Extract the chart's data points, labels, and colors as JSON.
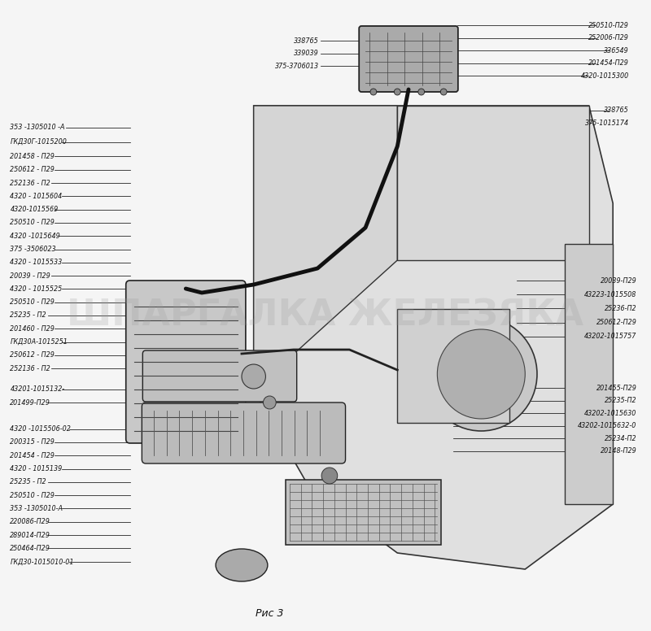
{
  "title": "Рис 3",
  "background_color": "#f5f5f5",
  "fig_width": 8.0,
  "fig_height": 7.76,
  "watermark_text": "ШПАРГАЛКА ЖЕЛЕЗЯКА",
  "watermark_alpha": 0.22,
  "watermark_fontsize": 32,
  "watermark_color": "#999999",
  "label_fontsize": 5.8,
  "label_color": "#111111",
  "left_labels": [
    [
      "353 -1305010 -А",
      0.798
    ],
    [
      "ГКД30Г-1015200",
      0.775
    ],
    [
      "201458 - П29",
      0.752
    ],
    [
      "250612 - П29",
      0.731
    ],
    [
      "252136 - П2",
      0.71
    ],
    [
      "4320 - 1015604",
      0.689
    ],
    [
      "4320-1015569",
      0.668
    ],
    [
      "250510 - П29",
      0.647
    ],
    [
      "4320 -1015649",
      0.626
    ],
    [
      "375 -3506023",
      0.605
    ],
    [
      "4320 - 1015533",
      0.584
    ],
    [
      "20039 - П29",
      0.563
    ],
    [
      "4320 - 1015525",
      0.542
    ],
    [
      "250510 - П29",
      0.521
    ],
    [
      "25235 - П2",
      0.5
    ],
    [
      "201460 - П29",
      0.479
    ],
    [
      "ГКД30А-1015251",
      0.458
    ],
    [
      "250612 - П29",
      0.437
    ],
    [
      "252136 - П2",
      0.416
    ],
    [
      "43201-1015132-",
      0.383
    ],
    [
      "201499-П29",
      0.362
    ],
    [
      "4320 -1015506-02",
      0.32
    ],
    [
      "200315 - П29",
      0.299
    ],
    [
      "201454 - П29",
      0.278
    ],
    [
      "4320 - 1015139",
      0.257
    ],
    [
      "25235 - П2",
      0.236
    ],
    [
      "250510 - П29",
      0.215
    ],
    [
      "353 -1305010-А",
      0.194
    ],
    [
      "220086-П29",
      0.173
    ],
    [
      "289014-П29",
      0.152
    ],
    [
      "250464-П29",
      0.131
    ],
    [
      "ГКД30-1015010-01",
      0.11
    ]
  ],
  "top_center_labels_left": [
    [
      "338765",
      0.935
    ],
    [
      "339039",
      0.915
    ],
    [
      "375-3706013",
      0.895
    ]
  ],
  "top_center_labels_right": [
    [
      "250510-П29",
      0.96
    ],
    [
      "252006-П29",
      0.94
    ],
    [
      "336549",
      0.92
    ],
    [
      "201454-П29",
      0.9
    ],
    [
      "4320-1015300",
      0.88
    ]
  ],
  "upper_right_labels": [
    [
      "338765",
      0.825
    ],
    [
      "375-1015174",
      0.805
    ]
  ],
  "right_labels_mid": [
    [
      "20039-П29",
      0.555
    ],
    [
      "43223-1015508",
      0.533
    ],
    [
      "25236-П2",
      0.511
    ],
    [
      "250612-П29",
      0.489
    ],
    [
      "43202-1015757",
      0.467
    ]
  ],
  "right_labels_bot": [
    [
      "201455-П29",
      0.385
    ],
    [
      "25235-П2",
      0.365
    ],
    [
      "43202-1015630",
      0.345
    ],
    [
      "43202-1015632-0",
      0.325
    ],
    [
      "25234-П2",
      0.305
    ],
    [
      "20148-П29",
      0.285
    ]
  ]
}
